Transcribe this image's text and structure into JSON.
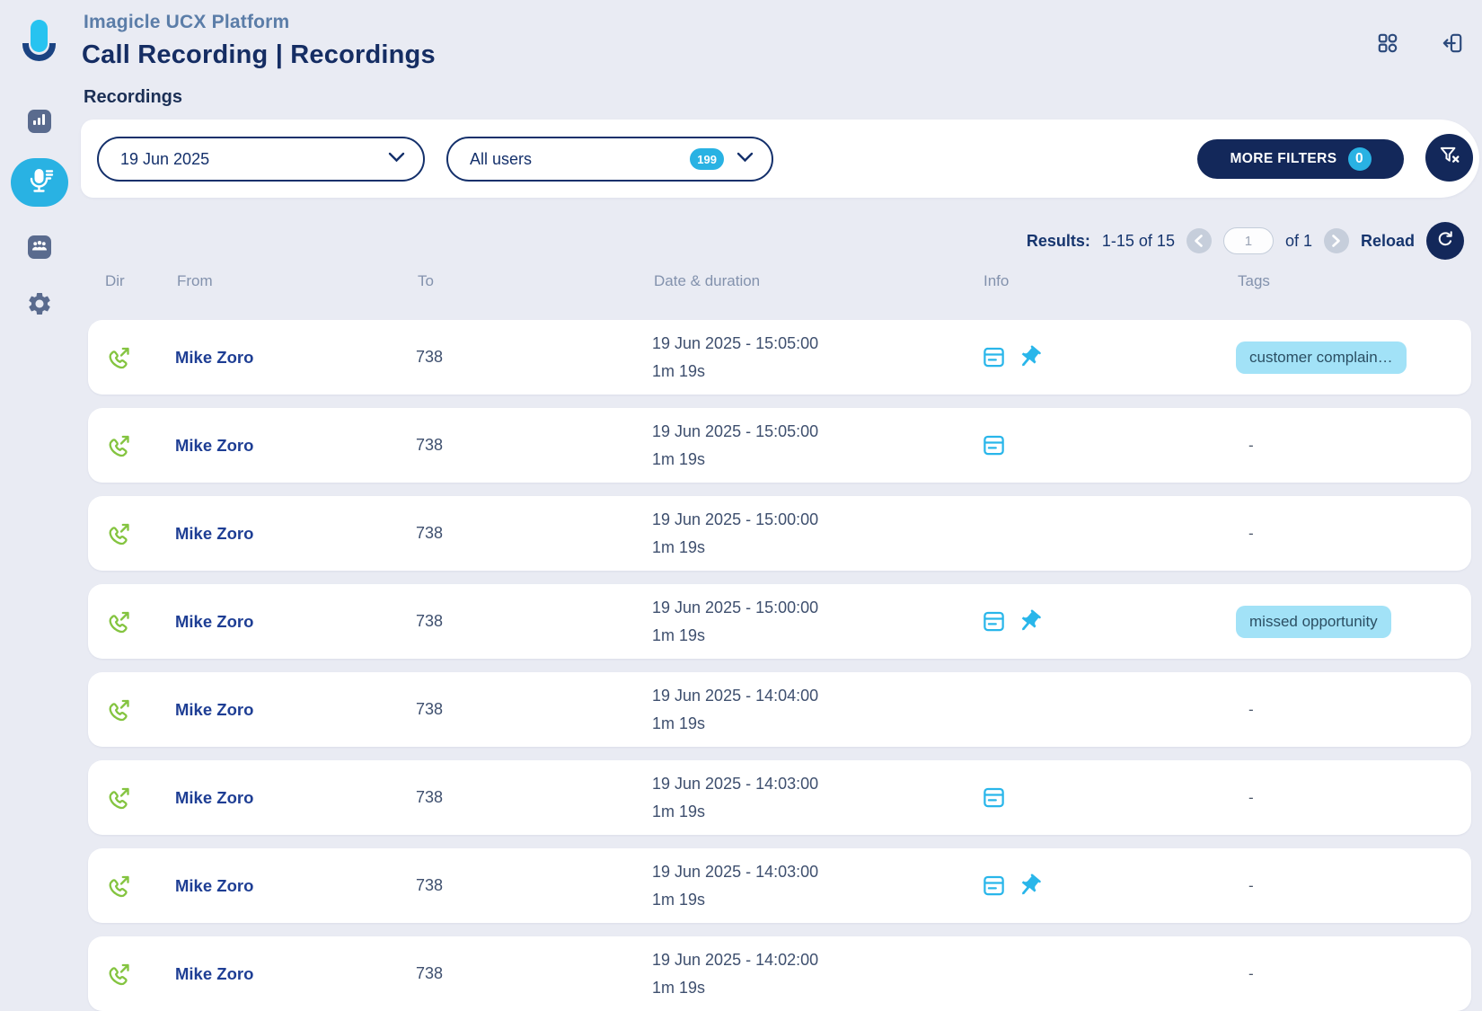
{
  "header": {
    "brand": "Imagicle UCX Platform",
    "title": "Call Recording | Recordings",
    "subtitle": "Recordings"
  },
  "topbar": {
    "apps_icon": "app-grid",
    "logout_icon": "logout"
  },
  "sidebar": {
    "items": [
      {
        "name": "analytics",
        "icon": "bar-chart",
        "active": false
      },
      {
        "name": "recordings",
        "icon": "microphone",
        "active": true
      },
      {
        "name": "users",
        "icon": "people",
        "active": false
      },
      {
        "name": "settings",
        "icon": "gear",
        "active": false
      }
    ]
  },
  "filters": {
    "date_value": "19 Jun 2025",
    "users_value": "All users",
    "users_count": "199",
    "more_filters_label": "MORE FILTERS",
    "more_filters_count": "0",
    "clear_filters_icon": "funnel-x"
  },
  "results": {
    "label": "Results:",
    "range": "1-15 of 15",
    "page": "1",
    "of": "of 1",
    "reload_label": "Reload"
  },
  "table": {
    "headers": {
      "dir": "Dir",
      "from": "From",
      "to": "To",
      "date": "Date & duration",
      "info": "Info",
      "tags": "Tags"
    },
    "rows": [
      {
        "direction": "outgoing",
        "from": "Mike Zoro",
        "to": "738",
        "date": "19 Jun 2025 - 15:05:00",
        "duration": "1m 19s",
        "notes": true,
        "pinned": true,
        "tag": "customer complain…"
      },
      {
        "direction": "outgoing",
        "from": "Mike Zoro",
        "to": "738",
        "date": "19 Jun 2025 - 15:05:00",
        "duration": "1m 19s",
        "notes": true,
        "pinned": false,
        "tag": "-"
      },
      {
        "direction": "outgoing",
        "from": "Mike Zoro",
        "to": "738",
        "date": "19 Jun 2025 - 15:00:00",
        "duration": "1m 19s",
        "notes": false,
        "pinned": false,
        "tag": "-"
      },
      {
        "direction": "outgoing",
        "from": "Mike Zoro",
        "to": "738",
        "date": "19 Jun 2025 - 15:00:00",
        "duration": "1m 19s",
        "notes": true,
        "pinned": true,
        "tag": "missed opportunity"
      },
      {
        "direction": "outgoing",
        "from": "Mike Zoro",
        "to": "738",
        "date": "19 Jun 2025 - 14:04:00",
        "duration": "1m 19s",
        "notes": false,
        "pinned": false,
        "tag": "-"
      },
      {
        "direction": "outgoing",
        "from": "Mike Zoro",
        "to": "738",
        "date": "19 Jun 2025 - 14:03:00",
        "duration": "1m 19s",
        "notes": true,
        "pinned": false,
        "tag": "-"
      },
      {
        "direction": "outgoing",
        "from": "Mike Zoro",
        "to": "738",
        "date": "19 Jun 2025 - 14:03:00",
        "duration": "1m 19s",
        "notes": true,
        "pinned": true,
        "tag": "-"
      },
      {
        "direction": "outgoing",
        "from": "Mike Zoro",
        "to": "738",
        "date": "19 Jun 2025 - 14:02:00",
        "duration": "1m 19s",
        "notes": false,
        "pinned": false,
        "tag": "-"
      }
    ]
  },
  "colors": {
    "accent_cyan": "#29b2e3",
    "navy": "#13285a",
    "green_outgoing": "#84c440",
    "tag_bg": "#a2e2f7",
    "page_bg": "#e9ebf3"
  }
}
